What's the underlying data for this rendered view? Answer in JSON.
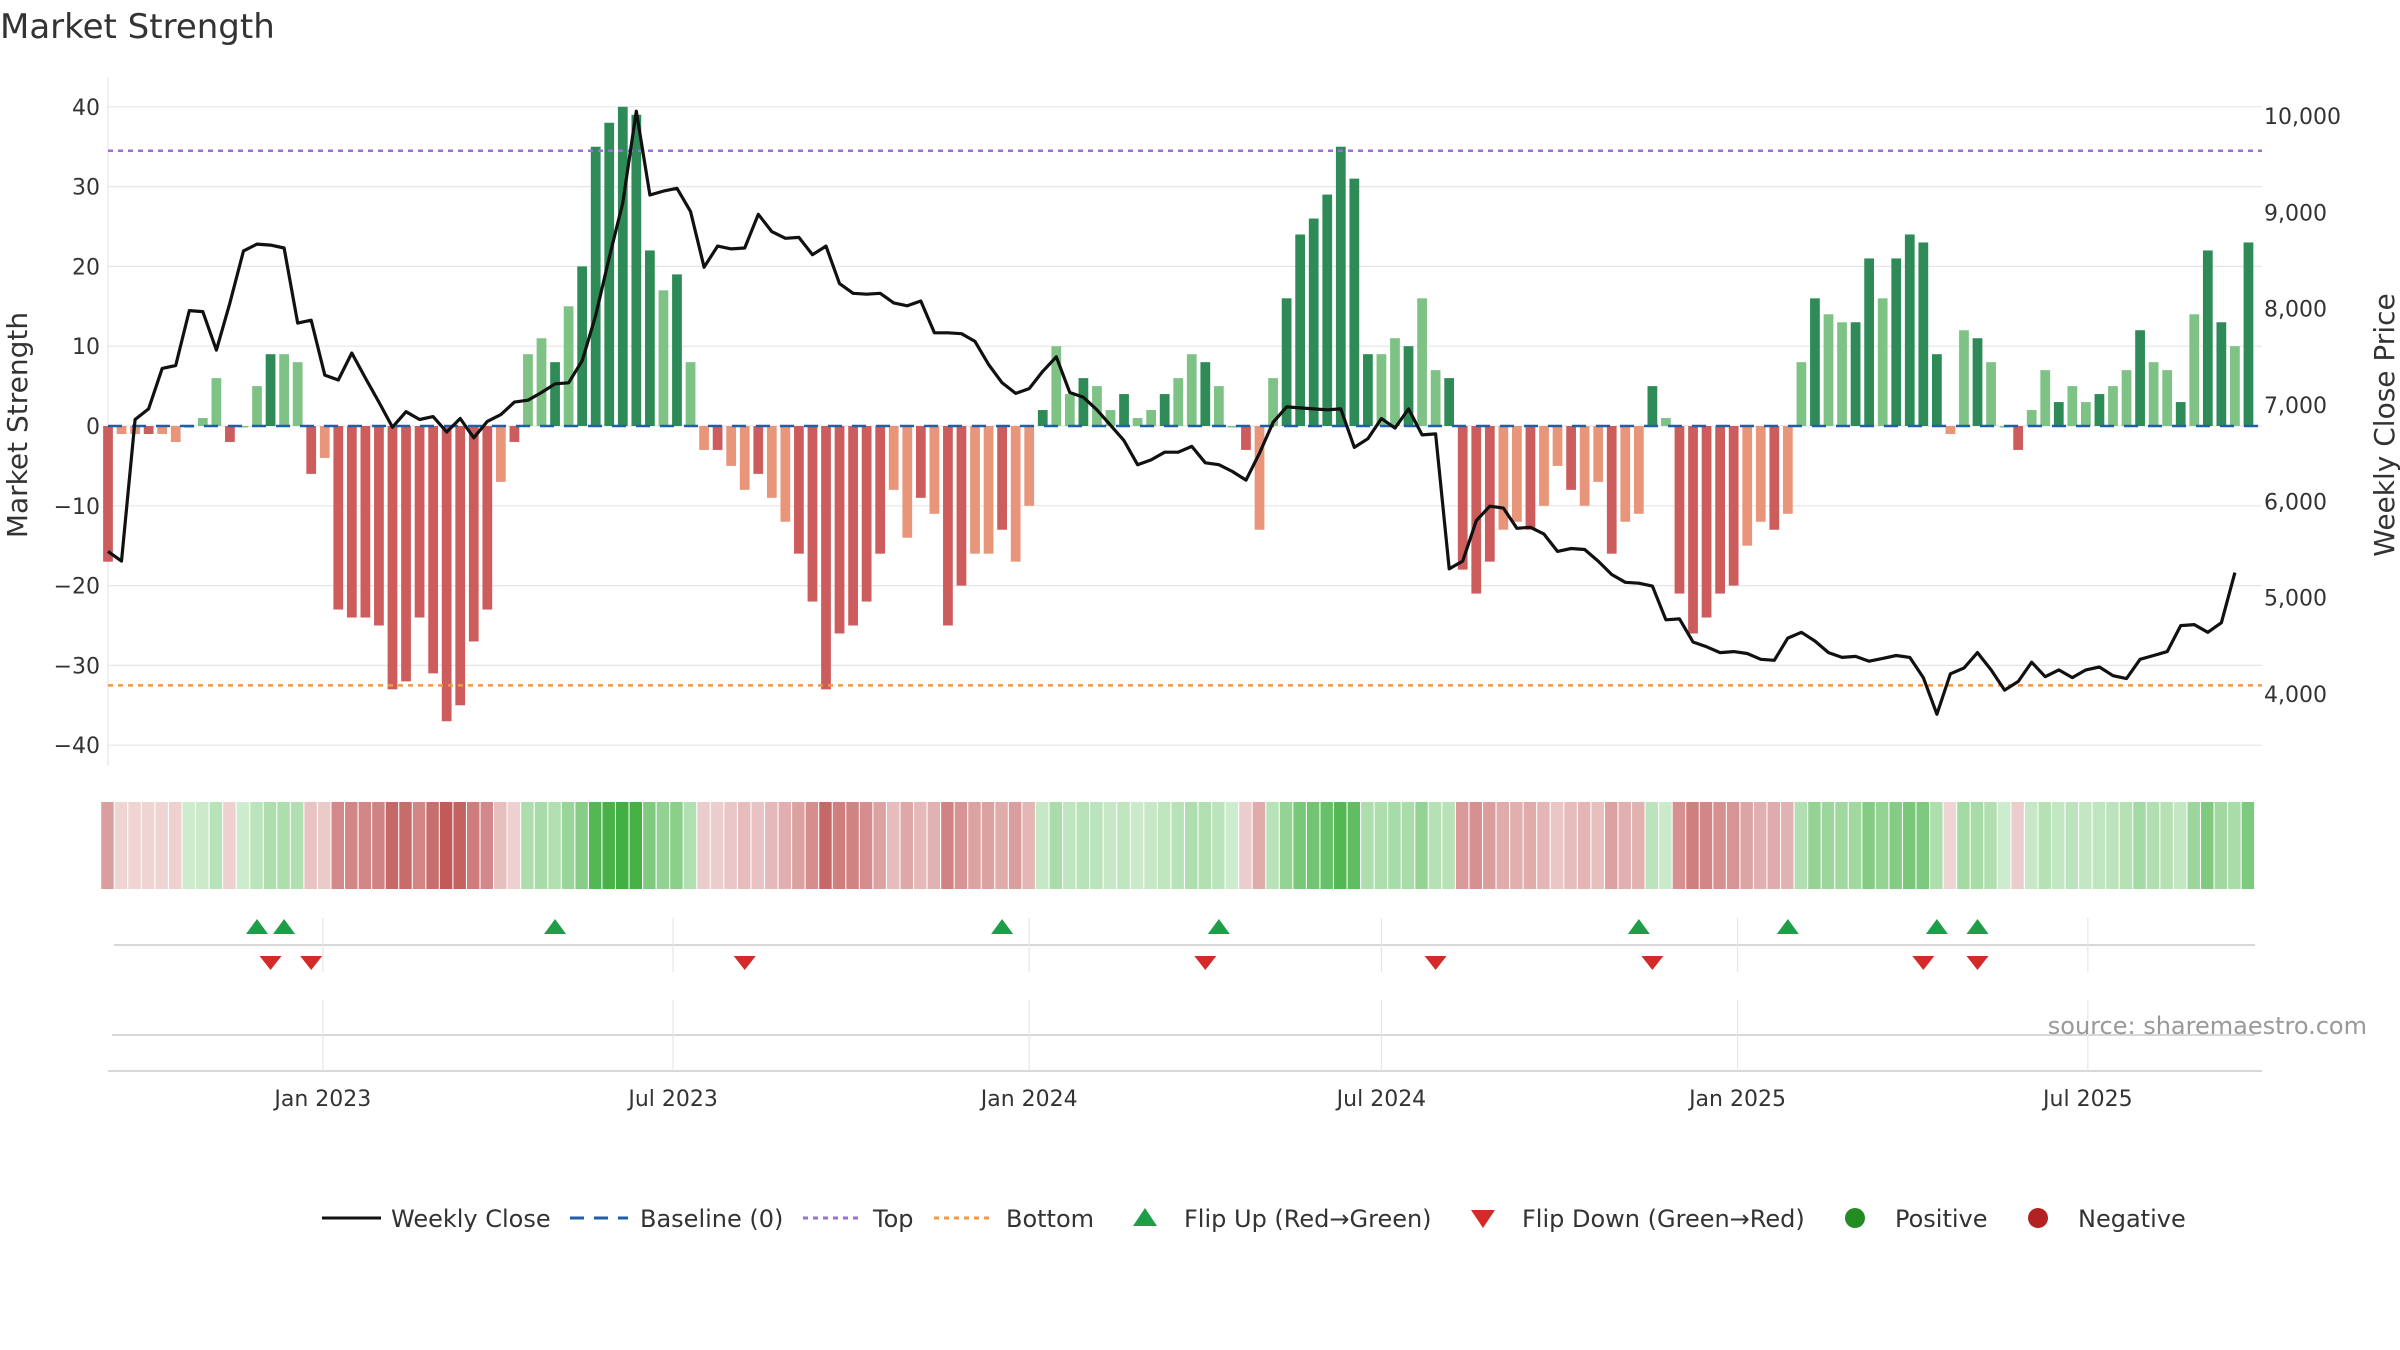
{
  "chart_data": {
    "type": "bar",
    "title": "Market Strength",
    "ylabel": "Market Strength",
    "y2label": "Weekly Close Price",
    "ylim": [
      -44,
      44
    ],
    "y2lim": [
      3200,
      10300
    ],
    "yticks": [
      40,
      30,
      20,
      10,
      0,
      -10,
      -20,
      -30,
      -40
    ],
    "y2ticks": [
      10000,
      9000,
      8000,
      7000,
      6000,
      5000,
      4000
    ],
    "y2tick_labels": [
      "10,000",
      "9,000",
      "8,000",
      "7,000",
      "6,000",
      "5,000",
      "4,000"
    ],
    "x_range": [
      "2022-09-12",
      "2025-09-29"
    ],
    "x_ticks": [
      {
        "date": "2023-01-01",
        "label": "Jan 2023"
      },
      {
        "date": "2023-07-01",
        "label": "Jul 2023"
      },
      {
        "date": "2024-01-01",
        "label": "Jan 2024"
      },
      {
        "date": "2024-07-01",
        "label": "Jul 2024"
      },
      {
        "date": "2025-01-01",
        "label": "Jan 2025"
      },
      {
        "date": "2025-07-01",
        "label": "Jul 2025"
      }
    ],
    "top_level": 34.5,
    "bottom_level": -32.5,
    "baseline": 0,
    "start_date": "2022-09-12",
    "strength": [
      -17,
      -1,
      -1,
      -1,
      -1,
      -2,
      0,
      1,
      6,
      -2,
      0,
      5,
      9,
      9,
      8,
      -6,
      -4,
      -23,
      -24,
      -24,
      -25,
      -33,
      -32,
      -24,
      -31,
      -37,
      -35,
      -27,
      -23,
      -7,
      -2,
      9,
      11,
      8,
      15,
      20,
      35,
      38,
      40,
      39,
      22,
      17,
      19,
      8,
      -3,
      -3,
      -5,
      -8,
      -6,
      -9,
      -12,
      -16,
      -22,
      -33,
      -26,
      -25,
      -22,
      -16,
      -8,
      -14,
      -9,
      -11,
      -25,
      -20,
      -16,
      -16,
      -13,
      -17,
      -10,
      2,
      10,
      4,
      6,
      5,
      2,
      4,
      1,
      2,
      4,
      6,
      9,
      8,
      5,
      0,
      -3,
      -13,
      6,
      16,
      24,
      26,
      29,
      35,
      31,
      9,
      9,
      11,
      10,
      16,
      7,
      6,
      -18,
      -21,
      -17,
      -13,
      -12,
      -13,
      -10,
      -5,
      -8,
      -10,
      -7,
      -16,
      -12,
      -11,
      5,
      1,
      -21,
      -26,
      -24,
      -21,
      -20,
      -15,
      -12,
      -13,
      -11,
      8,
      16,
      14,
      13,
      13,
      21,
      16,
      21,
      24,
      23,
      9,
      -1,
      12,
      11,
      8,
      0,
      -3,
      2,
      7,
      3,
      5,
      3,
      4,
      5,
      7,
      12,
      8,
      7,
      3,
      14,
      22,
      13,
      10,
      23
    ],
    "weekly_close": [
      5480,
      5380,
      6850,
      6960,
      7380,
      7410,
      7980,
      7970,
      7570,
      8060,
      8600,
      8670,
      8660,
      8630,
      7850,
      7880,
      7310,
      7260,
      7540,
      7280,
      7030,
      6770,
      6930,
      6850,
      6880,
      6720,
      6860,
      6660,
      6830,
      6900,
      7030,
      7050,
      7130,
      7220,
      7230,
      7460,
      7930,
      8530,
      9100,
      10050,
      9180,
      9220,
      9250,
      9010,
      8430,
      8650,
      8620,
      8630,
      8980,
      8800,
      8730,
      8740,
      8560,
      8650,
      8260,
      8160,
      8150,
      8160,
      8060,
      8030,
      8080,
      7750,
      7750,
      7740,
      7660,
      7420,
      7230,
      7120,
      7170,
      7350,
      7500,
      7130,
      7080,
      6950,
      6790,
      6630,
      6380,
      6430,
      6510,
      6510,
      6570,
      6400,
      6380,
      6310,
      6220,
      6500,
      6820,
      6980,
      6970,
      6960,
      6950,
      6960,
      6560,
      6650,
      6860,
      6760,
      6960,
      6690,
      6700,
      5300,
      5380,
      5800,
      5950,
      5930,
      5720,
      5730,
      5660,
      5480,
      5510,
      5500,
      5380,
      5240,
      5160,
      5150,
      5120,
      4770,
      4780,
      4540,
      4490,
      4430,
      4440,
      4420,
      4360,
      4350,
      4580,
      4640,
      4550,
      4430,
      4380,
      4390,
      4340,
      4370,
      4400,
      4380,
      4170,
      3790,
      4210,
      4270,
      4430,
      4250,
      4040,
      4130,
      4330,
      4180,
      4250,
      4170,
      4250,
      4280,
      4190,
      4160,
      4360,
      4400,
      4440,
      4710,
      4720,
      4640,
      4740,
      5260
    ],
    "flips_up": [
      "2022-11-28",
      "2022-12-12",
      "2023-05-01",
      "2023-12-18",
      "2024-04-08",
      "2024-11-11",
      "2025-01-27",
      "2025-04-14",
      "2025-05-05"
    ],
    "flips_down": [
      "2022-12-05",
      "2022-12-26",
      "2023-08-07",
      "2024-04-01",
      "2024-07-29",
      "2024-11-18",
      "2025-04-07",
      "2025-05-05"
    ],
    "colors": {
      "line": "#111111",
      "baseline": "#1f5fa8",
      "top": "#9a6fd6",
      "bottom": "#ee9a4a",
      "bar_pos_strong": "#2e8b57",
      "bar_pos_light": "#7fc285",
      "bar_neg_strong": "#cd5c5c",
      "bar_neg_light": "#e8957a",
      "flip_up": "#1f9e4a",
      "flip_down": "#d42a2a",
      "positive": "#228b22",
      "negative": "#b22222",
      "grid": "#e6e6e6"
    },
    "source": "source: sharemaestro.com",
    "legend": {
      "weekly_close": "Weekly Close",
      "baseline": "Baseline (0)",
      "top": "Top",
      "bottom": "Bottom",
      "flip_up": "Flip Up (Red→Green)",
      "flip_down": "Flip Down (Green→Red)",
      "positive": "Positive",
      "negative": "Negative"
    }
  }
}
